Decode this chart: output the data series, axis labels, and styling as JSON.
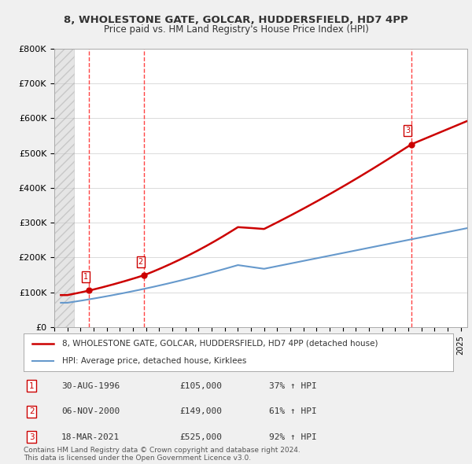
{
  "title1": "8, WHOLESTONE GATE, GOLCAR, HUDDERSFIELD, HD7 4PP",
  "title2": "Price paid vs. HM Land Registry's House Price Index (HPI)",
  "background_color": "#f0f0f0",
  "plot_bg_color": "#ffffff",
  "sale_points": [
    {
      "year": 1996.66,
      "price": 105000,
      "label": "1"
    },
    {
      "year": 2000.84,
      "price": 149000,
      "label": "2"
    },
    {
      "year": 2021.21,
      "price": 525000,
      "label": "3"
    }
  ],
  "vline_years": [
    1996.66,
    2000.84,
    2021.21
  ],
  "legend_line1": "8, WHOLESTONE GATE, GOLCAR, HUDDERSFIELD, HD7 4PP (detached house)",
  "legend_line2": "HPI: Average price, detached house, Kirklees",
  "table_rows": [
    {
      "num": "1",
      "date": "30-AUG-1996",
      "price": "£105,000",
      "pct": "37% ↑ HPI"
    },
    {
      "num": "2",
      "date": "06-NOV-2000",
      "price": "£149,000",
      "pct": "61% ↑ HPI"
    },
    {
      "num": "3",
      "date": "18-MAR-2021",
      "price": "£525,000",
      "pct": "92% ↑ HPI"
    }
  ],
  "footnote": "Contains HM Land Registry data © Crown copyright and database right 2024.\nThis data is licensed under the Open Government Licence v3.0.",
  "ylim": [
    0,
    800000
  ],
  "xlim_start": 1994,
  "xlim_end": 2025.5,
  "hatch_end": 1995.5,
  "red_color": "#cc0000",
  "blue_color": "#6699cc",
  "vline_color": "#ff4444"
}
